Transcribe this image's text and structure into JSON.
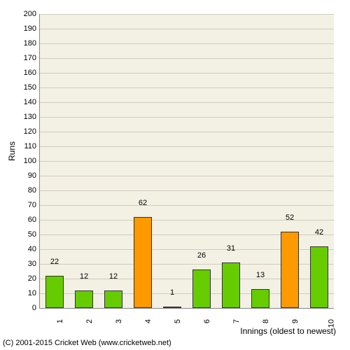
{
  "chart": {
    "type": "bar",
    "ylabel": "Runs",
    "xlabel": "Innings (oldest to newest)",
    "ylim": [
      0,
      200
    ],
    "ytick_step": 10,
    "background_color": "#f3f0e4",
    "grid_color": "#d0cdbf",
    "axis_color": "#888888",
    "label_fontsize": 12,
    "tick_fontsize": 11,
    "color_low": "#66cc00",
    "color_high": "#ff9900",
    "high_threshold": 50,
    "categories": [
      "1",
      "2",
      "3",
      "4",
      "5",
      "6",
      "7",
      "8",
      "9",
      "10"
    ],
    "values": [
      22,
      12,
      12,
      62,
      1,
      26,
      31,
      13,
      52,
      42
    ],
    "bar_width_ratio": 0.6
  },
  "copyright": "(C) 2001-2015 Cricket Web (www.cricketweb.net)"
}
